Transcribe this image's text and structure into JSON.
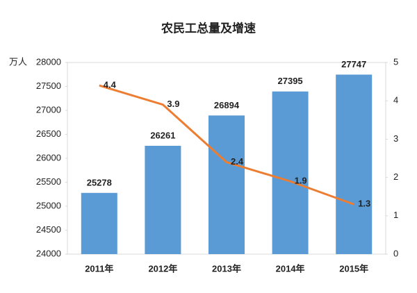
{
  "chart_data": {
    "type": "bar",
    "title": "农民工总量及增速",
    "y_label": "万人",
    "categories": [
      "2011年",
      "2012年",
      "2013年",
      "2014年",
      "2015年"
    ],
    "series": [
      {
        "name": "农民工总量",
        "type": "bar",
        "color": "#5b9bd5",
        "values": [
          25278,
          26261,
          26894,
          27395,
          27747
        ]
      },
      {
        "name": "增速",
        "type": "line",
        "axis": "y2",
        "color": "#ed7d31",
        "values": [
          4.4,
          3.9,
          2.4,
          1.9,
          1.3
        ]
      }
    ],
    "ylim": [
      24000,
      28000
    ],
    "yticks": [
      24000,
      24500,
      25000,
      25500,
      26000,
      26500,
      27000,
      27500,
      28000
    ],
    "y2lim": [
      0,
      5
    ],
    "y2ticks": [
      0,
      1,
      2,
      3,
      4,
      5
    ],
    "grid": false,
    "legend": false
  }
}
